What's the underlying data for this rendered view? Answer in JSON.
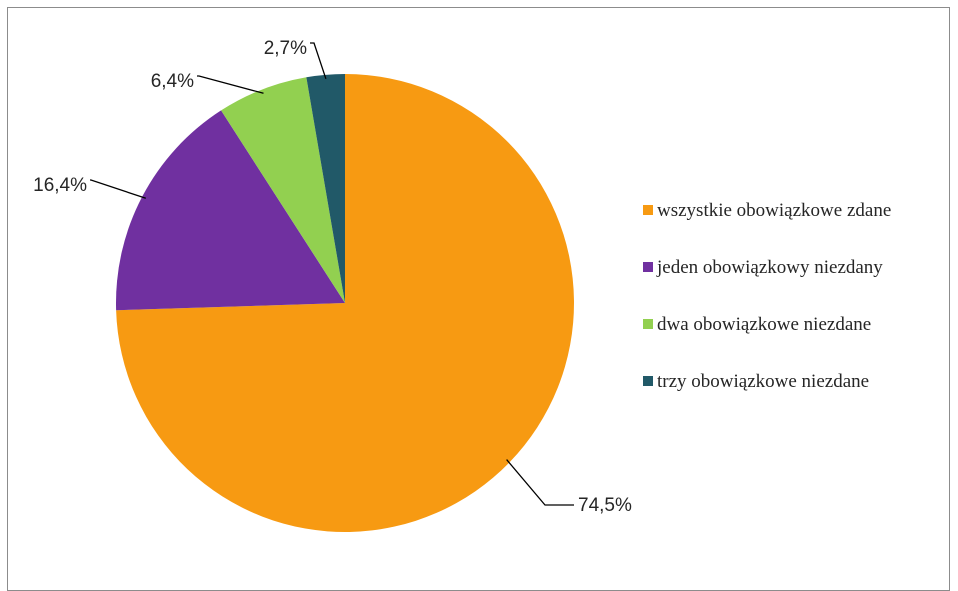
{
  "chart_data": {
    "type": "pie",
    "title": "",
    "series": [
      {
        "categories": [
          "wszystkie obowiązkowe zdane",
          "jeden obowiązkowy niezdany",
          "dwa obowiązkowe niezdane",
          "trzy obowiązkowe niezdane"
        ],
        "values": [
          74.5,
          16.4,
          6.4,
          2.7
        ],
        "labels": [
          "74,5%",
          "16,4%",
          "6,4%",
          "2,7%"
        ],
        "colors": [
          "#F79A12",
          "#7030A0",
          "#92D050",
          "#215968"
        ]
      }
    ],
    "start_angle": "12 o'clock",
    "direction": "clockwise",
    "legend": "right"
  }
}
